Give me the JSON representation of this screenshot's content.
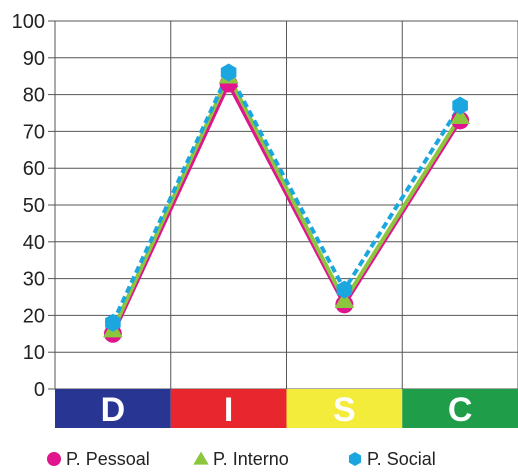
{
  "chart_data": {
    "type": "line",
    "categories": [
      "D",
      "I",
      "S",
      "C"
    ],
    "category_colors": [
      "#283593",
      "#e8262d",
      "#f4ec3a",
      "#1f9d48"
    ],
    "yticks": [
      "0",
      "10",
      "20",
      "30",
      "40",
      "50",
      "60",
      "70",
      "80",
      "90",
      "100"
    ],
    "ylim": [
      0,
      100
    ],
    "grid": true,
    "legend_position": "bottom",
    "series": [
      {
        "name": "P. Pessoal",
        "values": [
          15,
          83,
          23,
          73
        ],
        "color": "#e0148c",
        "marker": "circle",
        "dashed": false
      },
      {
        "name": "P. Interno",
        "values": [
          16,
          85,
          24,
          74
        ],
        "color": "#8cc63f",
        "marker": "triangle",
        "dashed": false
      },
      {
        "name": "P. Social",
        "values": [
          18,
          86,
          27,
          77
        ],
        "color": "#1ba6e0",
        "marker": "hexagon",
        "dashed": true
      }
    ]
  }
}
